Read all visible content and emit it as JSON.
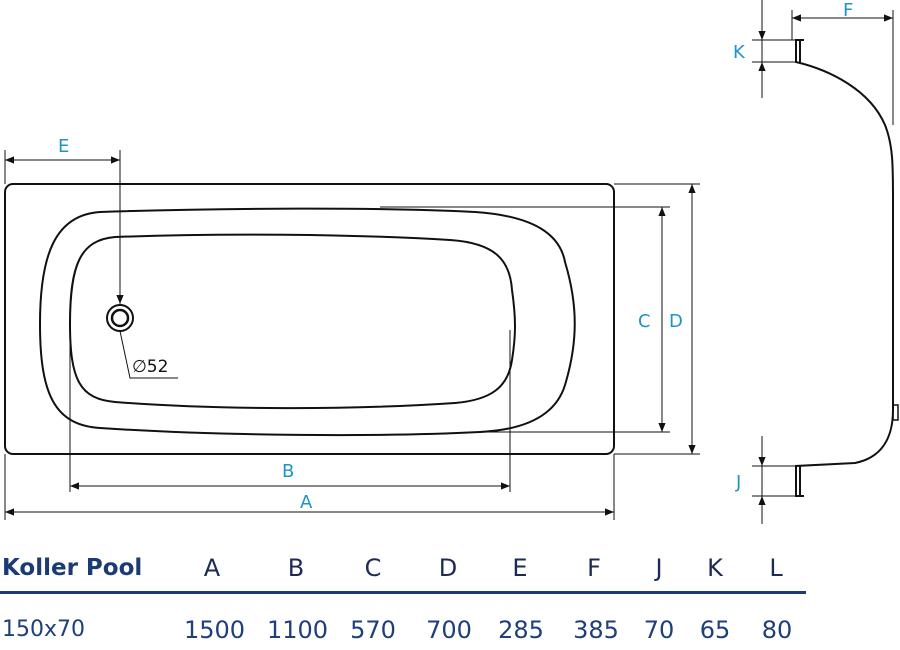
{
  "drawing": {
    "labels": {
      "A": "A",
      "B": "B",
      "C": "C",
      "D": "D",
      "E": "E",
      "F": "F",
      "J": "J",
      "K": "K",
      "drain": "∅52"
    },
    "colors": {
      "dimension": "#1f93c8",
      "outline": "#111111",
      "table": "#1c3a73"
    }
  },
  "table": {
    "model": "Koller Pool",
    "size": "150x70",
    "columns": [
      "A",
      "B",
      "C",
      "D",
      "E",
      "F",
      "J",
      "K",
      "L"
    ],
    "values": [
      "1500",
      "1100",
      "570",
      "700",
      "285",
      "385",
      "70",
      "65",
      "80"
    ]
  }
}
